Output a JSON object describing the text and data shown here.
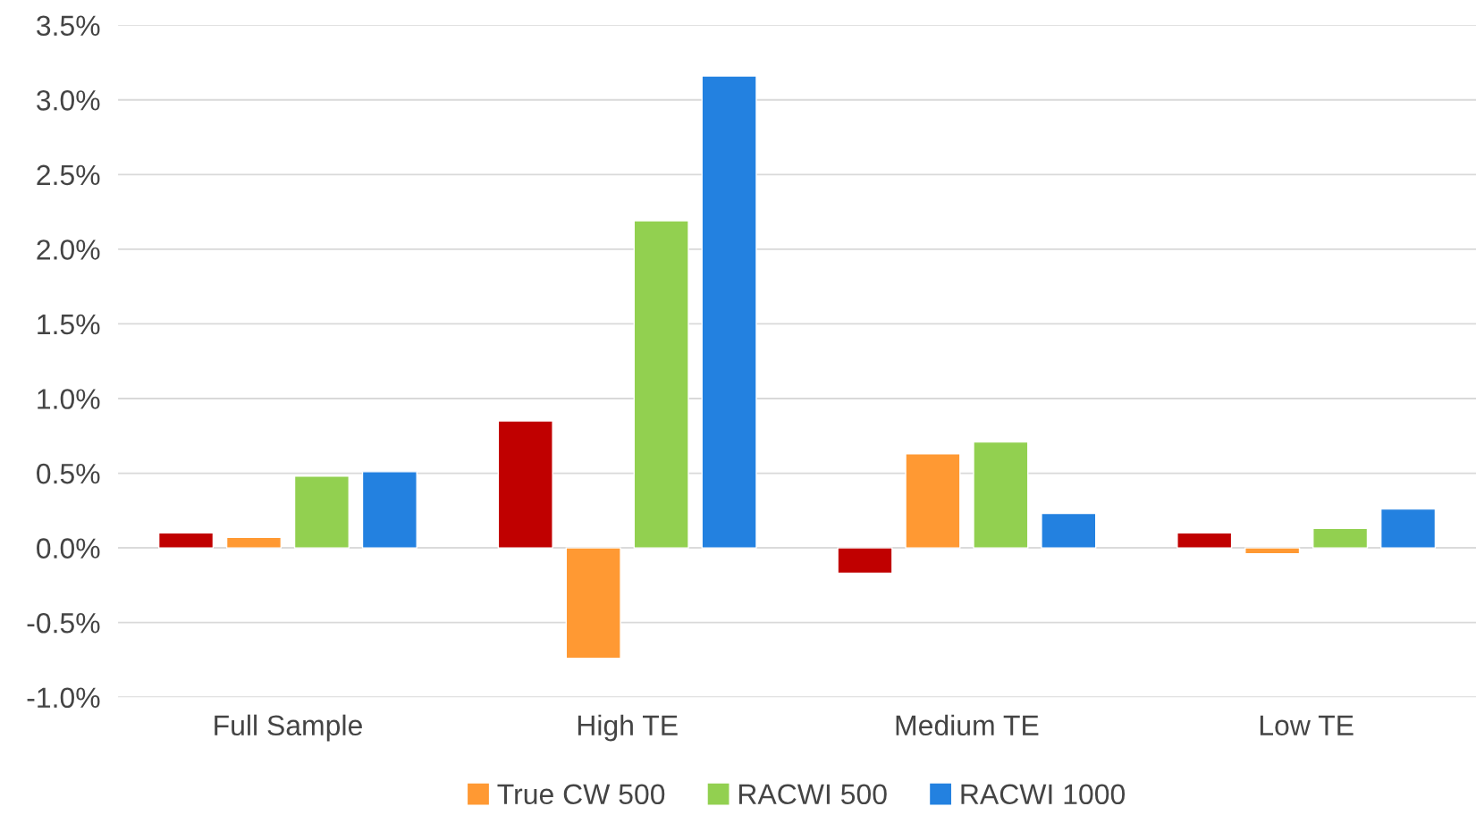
{
  "chart_data": {
    "type": "bar",
    "categories": [
      "Full Sample",
      "High TE",
      "Medium TE",
      "Low TE"
    ],
    "series": [
      {
        "color": "#c00000",
        "values": [
          0.1,
          0.85,
          -0.17,
          0.1
        ]
      },
      {
        "name": "True CW 500",
        "color": "#ff9933",
        "values": [
          0.07,
          -0.74,
          0.63,
          -0.04
        ]
      },
      {
        "name": "RACWI 500",
        "color": "#92d050",
        "values": [
          0.48,
          2.19,
          0.71,
          0.13
        ]
      },
      {
        "name": "RACWI 1000",
        "color": "#2381e0",
        "values": [
          0.51,
          3.16,
          0.23,
          0.26
        ]
      }
    ],
    "ylim": [
      -1.0,
      3.5
    ],
    "yticks": [
      {
        "value": -1.0,
        "label": "-1.0%"
      },
      {
        "value": -0.5,
        "label": "-0.5%"
      },
      {
        "value": 0.0,
        "label": "0.0%"
      },
      {
        "value": 0.5,
        "label": "0.5%"
      },
      {
        "value": 1.0,
        "label": "1.0%"
      },
      {
        "value": 1.5,
        "label": "1.5%"
      },
      {
        "value": 2.0,
        "label": "2.0%"
      },
      {
        "value": 2.5,
        "label": "2.5%"
      },
      {
        "value": 3.0,
        "label": "3.0%"
      },
      {
        "value": 3.5,
        "label": "3.5%"
      }
    ],
    "grid": "y",
    "legend": "bottom"
  }
}
